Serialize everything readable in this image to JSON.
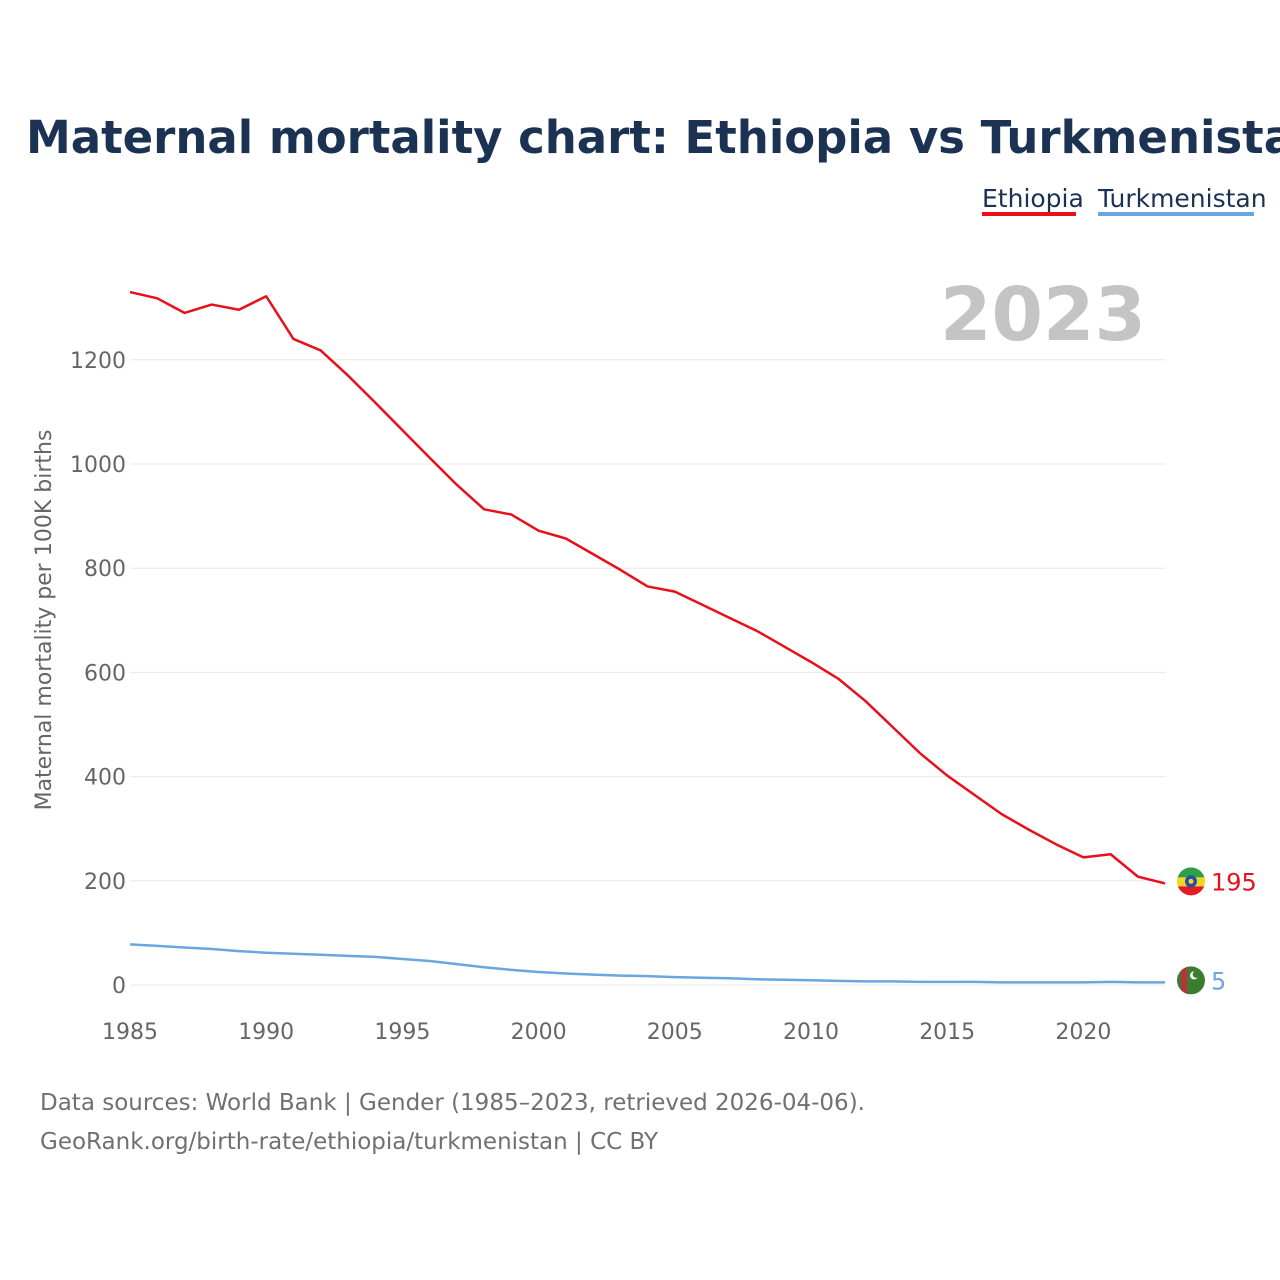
{
  "chart_data": {
    "type": "line",
    "title": "Maternal mortality chart: Ethiopia vs Turkmenistan",
    "ylabel": "Maternal mortality per 100K births",
    "xlabel": "",
    "year_label": "2023",
    "ylim": [
      0,
      1400
    ],
    "xlim": [
      1985,
      2023
    ],
    "y_ticks": [
      0,
      200,
      400,
      600,
      800,
      1000,
      1200
    ],
    "y_tick_labels": [
      "0",
      "200",
      "400",
      "600",
      "800",
      "1000",
      "1200"
    ],
    "x_ticks": [
      1985,
      1990,
      1995,
      2000,
      2005,
      2010,
      2015,
      2020
    ],
    "x_tick_labels": [
      "1985",
      "1990",
      "1995",
      "2000",
      "2005",
      "2010",
      "2015",
      "2020"
    ],
    "x": [
      1985,
      1986,
      1987,
      1988,
      1989,
      1990,
      1991,
      1992,
      1993,
      1994,
      1995,
      1996,
      1997,
      1998,
      1999,
      2000,
      2001,
      2002,
      2003,
      2004,
      2005,
      2006,
      2007,
      2008,
      2009,
      2010,
      2011,
      2012,
      2013,
      2014,
      2015,
      2016,
      2017,
      2018,
      2019,
      2020,
      2021,
      2022,
      2023
    ],
    "series": [
      {
        "name": "Ethiopia",
        "color": "#e8101a",
        "end_label": "195",
        "flag": "ethiopia-flag-icon",
        "values": [
          1330,
          1318,
          1290,
          1306,
          1296,
          1322,
          1240,
          1218,
          1170,
          1118,
          1065,
          1012,
          960,
          913,
          903,
          872,
          857,
          827,
          797,
          765,
          755,
          730,
          705,
          680,
          650,
          620,
          588,
          545,
          495,
          445,
          402,
          365,
          328,
          298,
          270,
          245,
          251,
          208,
          195
        ]
      },
      {
        "name": "Turkmenistan",
        "color": "#6aa6e0",
        "end_label": "5",
        "flag": "turkmenistan-flag-icon",
        "values": [
          78,
          75,
          72,
          69,
          65,
          62,
          60,
          58,
          56,
          54,
          50,
          46,
          40,
          34,
          29,
          25,
          22,
          20,
          18,
          17,
          15,
          14,
          13,
          11,
          10,
          9,
          8,
          7,
          7,
          6,
          6,
          6,
          5,
          5,
          5,
          5,
          6,
          5,
          5
        ]
      }
    ]
  },
  "legend": {
    "items": [
      {
        "label": "Ethiopia",
        "color": "#e8101a"
      },
      {
        "label": "Turkmenistan",
        "color": "#6aa6e0"
      }
    ]
  },
  "footer": {
    "source_line": "Data sources: World Bank | Gender (1985–2023, retrieved 2026-04-06).",
    "credit_line": "GeoRank.org/birth-rate/ethiopia/turkmenistan | CC BY"
  }
}
